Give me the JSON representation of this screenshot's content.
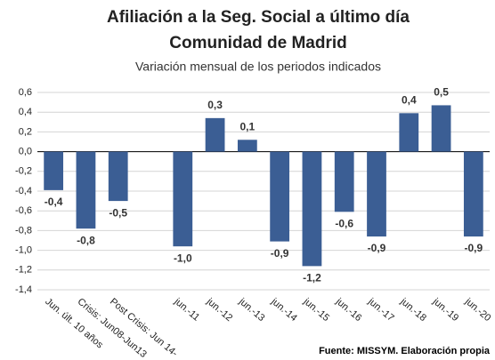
{
  "chart_data": {
    "type": "bar",
    "title": [
      "Afiliación a la Seg. Social a último día",
      "Comunidad de Madrid"
    ],
    "subtitle": "Variación mensual de los periodos indicados",
    "source": "Fuente: MISSYM. Elaboración propia",
    "categories": [
      "Jun. últ. 10 años",
      "Crisis: Jun08-Jun13",
      "Post Crisis: Jun 14-",
      null,
      "jun.-11",
      "jun.-12",
      "jun.-13",
      "jun.-14",
      "jun.-15",
      "jun.-16",
      "jun.-17",
      "jun.-18",
      "jun.-19",
      "jun.-20"
    ],
    "values": [
      -0.39,
      -0.78,
      -0.5,
      null,
      -0.96,
      0.34,
      0.12,
      -0.91,
      -1.16,
      -0.61,
      -0.86,
      0.39,
      0.47,
      -0.86
    ],
    "value_labels": [
      "-0,4",
      "-0,8",
      "-0,5",
      null,
      "-1,0",
      "0,3",
      "0,1",
      "-0,9",
      "-1,2",
      "-0,6",
      "-0,9",
      "0,4",
      "0,5",
      "-0,9"
    ],
    "color": "#3b5e94",
    "ylim": [
      -1.4,
      0.6
    ],
    "yticks": [
      {
        "value": -1.4,
        "label": "-1,4"
      },
      {
        "value": -1.2,
        "label": "-1,2"
      },
      {
        "value": -1.0,
        "label": "-1,0"
      },
      {
        "value": -0.8,
        "label": "-0,8"
      },
      {
        "value": -0.6,
        "label": "-0,6"
      },
      {
        "value": -0.4,
        "label": "-0,4"
      },
      {
        "value": -0.2,
        "label": "-0,2"
      },
      {
        "value": 0,
        "label": "0,0"
      },
      {
        "value": 0.2,
        "label": "0,2"
      },
      {
        "value": 0.4,
        "label": "0,4"
      },
      {
        "value": 0.6,
        "label": "0,6"
      }
    ],
    "grid": true
  }
}
